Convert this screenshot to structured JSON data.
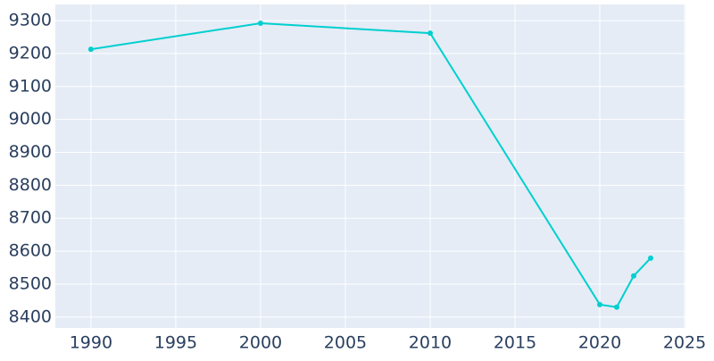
{
  "chart_data": {
    "type": "line",
    "x": [
      1990,
      2000,
      2010,
      2020,
      2021,
      2022,
      2023
    ],
    "series": [
      {
        "color": "#00cfcf",
        "values": [
          9213,
          9292,
          9262,
          8438,
          8430,
          8525,
          8579
        ]
      }
    ],
    "xlim": [
      1987.9,
      2025.05
    ],
    "xticks": [
      1990,
      1995,
      2000,
      2005,
      2010,
      2015,
      2020,
      2025
    ],
    "ylim": [
      8367,
      9349
    ],
    "yticks": [
      8400,
      8500,
      8600,
      8700,
      8800,
      8900,
      9000,
      9100,
      9200,
      9300
    ],
    "grid": true,
    "plot_background": "#e5ecf6"
  }
}
